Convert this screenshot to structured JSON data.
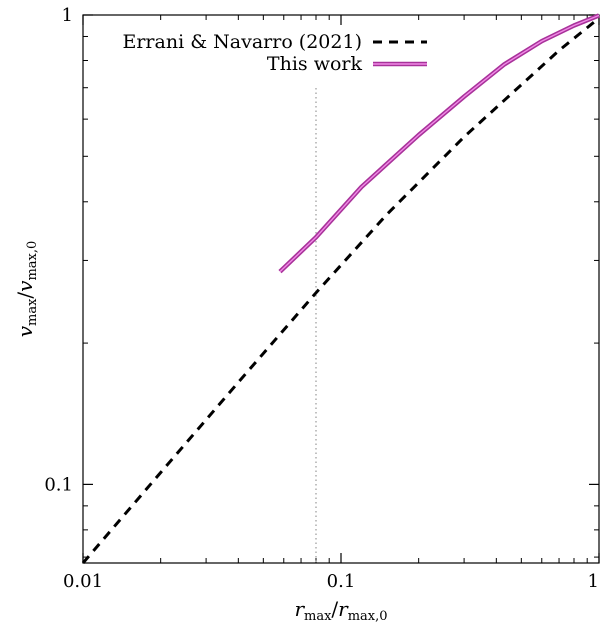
{
  "chart_data": {
    "type": "line",
    "xscale": "log",
    "yscale": "log",
    "xlim": [
      0.01,
      1
    ],
    "ylim": [
      0.068,
      1
    ],
    "x_ticks": [
      {
        "value": 0.01,
        "label": "0.01"
      },
      {
        "value": 0.1,
        "label": "0.1"
      },
      {
        "value": 1,
        "label": "1"
      }
    ],
    "y_ticks": [
      {
        "value": 0.1,
        "label": "0.1"
      },
      {
        "value": 1,
        "label": "1"
      }
    ],
    "xlabel": {
      "main": "r",
      "sub": "max",
      "sep": "/",
      "main2": "r",
      "sub2": "max,0"
    },
    "ylabel": {
      "main": "v",
      "sub": "max",
      "sep": "/",
      "main2": "v",
      "sub2": "max,0"
    },
    "vline": {
      "x": 0.08,
      "color": "#a0a0a0",
      "style": "dotted"
    },
    "legend_position": "top-right",
    "series": [
      {
        "name": "Errani & Navarro (2021)",
        "style": "dashed",
        "color": "#000000",
        "x": [
          0.01,
          0.02,
          0.04,
          0.08,
          0.15,
          0.3,
          0.5,
          0.7,
          1.0
        ],
        "y": [
          0.068,
          0.106,
          0.165,
          0.256,
          0.375,
          0.55,
          0.71,
          0.84,
          0.985
        ]
      },
      {
        "name": "This work",
        "style": "solid",
        "color": "#cc44bb",
        "x": [
          0.058,
          0.08,
          0.12,
          0.2,
          0.3,
          0.43,
          0.6,
          0.8,
          1.0
        ],
        "y": [
          0.284,
          0.336,
          0.43,
          0.555,
          0.67,
          0.785,
          0.88,
          0.95,
          0.998
        ]
      }
    ]
  }
}
